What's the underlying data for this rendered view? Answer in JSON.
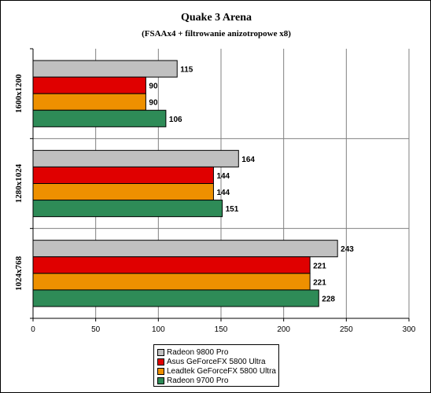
{
  "chart_data": {
    "type": "bar",
    "orientation": "horizontal",
    "title": "Quake 3 Arena",
    "subtitle": "(FSAAx4 + filtrowanie anizotropowe x8)",
    "categories": [
      "1600x1200",
      "1280x1024",
      "1024x768"
    ],
    "series": [
      {
        "name": "Radeon 9800 Pro",
        "color": "#c0c0c0",
        "values": [
          115,
          164,
          243
        ]
      },
      {
        "name": "Asus GeForceFX 5800 Ultra",
        "color": "#e00000",
        "values": [
          90,
          144,
          221
        ]
      },
      {
        "name": "Leadtek GeForceFX 5800 Ultra",
        "color": "#ee9000",
        "values": [
          90,
          144,
          221
        ]
      },
      {
        "name": "Radeon 9700 Pro",
        "color": "#2e8b57",
        "values": [
          106,
          151,
          228
        ]
      }
    ],
    "xlim": [
      0,
      300
    ],
    "xticks": [
      0,
      50,
      100,
      150,
      200,
      250,
      300
    ],
    "grid": true,
    "legend_position": "bottom"
  }
}
